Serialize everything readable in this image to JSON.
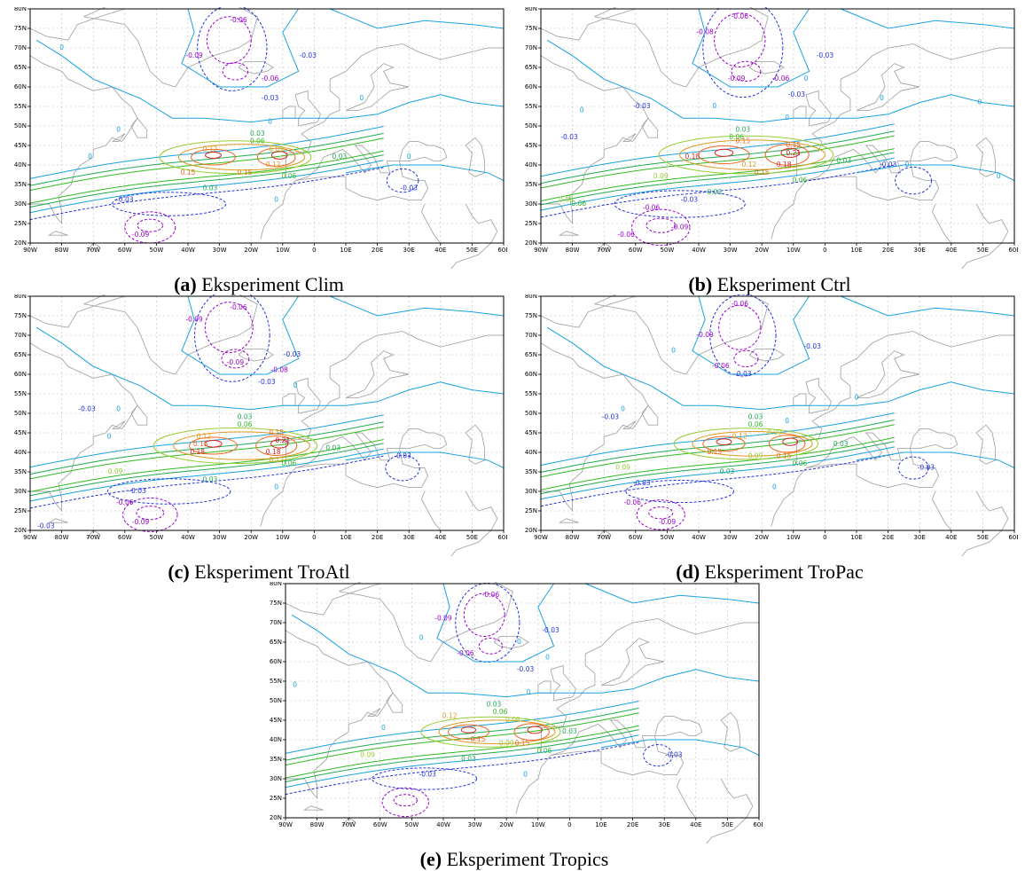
{
  "figure": {
    "panels": [
      {
        "letter": "(a)",
        "caption": "Eksperiment Clim",
        "labels": [
          {
            "t": "-0.06",
            "lon": -24,
            "lat": 77
          },
          {
            "t": "-0.09",
            "lon": -38,
            "lat": 68
          },
          {
            "t": "-0.03",
            "lon": -2,
            "lat": 68
          },
          {
            "t": "-0.06",
            "lon": -14,
            "lat": 62
          },
          {
            "t": "-0.03",
            "lon": -14,
            "lat": 57
          },
          {
            "t": "0",
            "lon": 15,
            "lat": 57
          },
          {
            "t": "0",
            "lon": -14,
            "lat": 51
          },
          {
            "t": "0.03",
            "lon": -18,
            "lat": 48
          },
          {
            "t": "0.06",
            "lon": -18,
            "lat": 46
          },
          {
            "t": "0.12",
            "lon": -33,
            "lat": 44
          },
          {
            "t": "0.09",
            "lon": -12,
            "lat": 44
          },
          {
            "t": "0.03",
            "lon": 8,
            "lat": 42
          },
          {
            "t": "0.15",
            "lon": -40,
            "lat": 38
          },
          {
            "t": "0.15",
            "lon": -22,
            "lat": 38
          },
          {
            "t": "0.12",
            "lon": -13,
            "lat": 40
          },
          {
            "t": "0.06",
            "lon": -8,
            "lat": 37
          },
          {
            "t": "0.03",
            "lon": -33,
            "lat": 34
          },
          {
            "t": "0",
            "lon": -12,
            "lat": 31
          },
          {
            "t": "-0.03",
            "lon": -60,
            "lat": 31
          },
          {
            "t": "-0.03",
            "lon": 30,
            "lat": 34
          },
          {
            "t": "0",
            "lon": 30,
            "lat": 42
          },
          {
            "t": "-0.09",
            "lon": -55,
            "lat": 22
          },
          {
            "t": "0",
            "lon": -71,
            "lat": 42
          },
          {
            "t": "0",
            "lon": -62,
            "lat": 49
          },
          {
            "t": "0",
            "lon": -80,
            "lat": 70
          }
        ]
      },
      {
        "letter": "(b)",
        "caption": "Eksperiment Ctrl",
        "labels": [
          {
            "t": "-0.06",
            "lon": -27,
            "lat": 78
          },
          {
            "t": "-0.08",
            "lon": -38,
            "lat": 74
          },
          {
            "t": "-0.03",
            "lon": 0,
            "lat": 68
          },
          {
            "t": "-0.09",
            "lon": -28,
            "lat": 62
          },
          {
            "t": "-0.06",
            "lon": -14,
            "lat": 62
          },
          {
            "t": "-0.03",
            "lon": -9,
            "lat": 58
          },
          {
            "t": "0",
            "lon": -6,
            "lat": 62
          },
          {
            "t": "0",
            "lon": 18,
            "lat": 57
          },
          {
            "t": "-0.03",
            "lon": -58,
            "lat": 55
          },
          {
            "t": "0",
            "lon": -77,
            "lat": 54
          },
          {
            "t": "-0.03",
            "lon": -81,
            "lat": 47
          },
          {
            "t": "0",
            "lon": -12,
            "lat": 52
          },
          {
            "t": "0.03",
            "lon": -26,
            "lat": 49
          },
          {
            "t": "0.06",
            "lon": -28,
            "lat": 47
          },
          {
            "t": "0.15",
            "lon": -26,
            "lat": 46
          },
          {
            "t": "0.15",
            "lon": -10,
            "lat": 45
          },
          {
            "t": "0.21",
            "lon": -10,
            "lat": 43
          },
          {
            "t": "0.18",
            "lon": -42,
            "lat": 42
          },
          {
            "t": "0.18",
            "lon": -13,
            "lat": 40
          },
          {
            "t": "0.12",
            "lon": -24,
            "lat": 40
          },
          {
            "t": "0.15",
            "lon": -20,
            "lat": 38
          },
          {
            "t": "0.09",
            "lon": -52,
            "lat": 37
          },
          {
            "t": "0.06",
            "lon": -8,
            "lat": 36
          },
          {
            "t": "0.03",
            "lon": 6,
            "lat": 41
          },
          {
            "t": "-0.03",
            "lon": 20,
            "lat": 40
          },
          {
            "t": "0.03",
            "lon": -35,
            "lat": 33
          },
          {
            "t": "-0.03",
            "lon": -43,
            "lat": 31
          },
          {
            "t": "0.06",
            "lon": -78,
            "lat": 30
          },
          {
            "t": "0.09",
            "lon": -82,
            "lat": 31
          },
          {
            "t": "-0.06",
            "lon": -55,
            "lat": 29
          },
          {
            "t": "-0.09",
            "lon": -46,
            "lat": 24
          },
          {
            "t": "-0.06",
            "lon": -63,
            "lat": 22
          },
          {
            "t": "0",
            "lon": 26,
            "lat": 40
          },
          {
            "t": "0",
            "lon": -35,
            "lat": 55
          },
          {
            "t": "0",
            "lon": 55,
            "lat": 37
          },
          {
            "t": "0",
            "lon": 49,
            "lat": 56
          }
        ]
      },
      {
        "letter": "(c)",
        "caption": "Eksperiment TroAtl",
        "labels": [
          {
            "t": "-0.06",
            "lon": -24,
            "lat": 77
          },
          {
            "t": "-0.09",
            "lon": -38,
            "lat": 74
          },
          {
            "t": "-0.03",
            "lon": -7,
            "lat": 65
          },
          {
            "t": "-0.09",
            "lon": -25,
            "lat": 63
          },
          {
            "t": "-0.08",
            "lon": -11,
            "lat": 61
          },
          {
            "t": "-0.03",
            "lon": -15,
            "lat": 58
          },
          {
            "t": "0",
            "lon": -6,
            "lat": 57
          },
          {
            "t": "-0.03",
            "lon": -72,
            "lat": 51
          },
          {
            "t": "0",
            "lon": -65,
            "lat": 44
          },
          {
            "t": "0.03",
            "lon": -22,
            "lat": 49
          },
          {
            "t": "0.06",
            "lon": -22,
            "lat": 47
          },
          {
            "t": "0.15",
            "lon": -12,
            "lat": 45
          },
          {
            "t": "0.12",
            "lon": -35,
            "lat": 44
          },
          {
            "t": "0.15",
            "lon": -36,
            "lat": 42
          },
          {
            "t": "0.21",
            "lon": -10,
            "lat": 43
          },
          {
            "t": "0.18",
            "lon": -37,
            "lat": 40
          },
          {
            "t": "0.18",
            "lon": -13,
            "lat": 40
          },
          {
            "t": "0.12",
            "lon": -12,
            "lat": 38
          },
          {
            "t": "0.09",
            "lon": -63,
            "lat": 35
          },
          {
            "t": "0.06",
            "lon": -8,
            "lat": 37
          },
          {
            "t": "0.03",
            "lon": 6,
            "lat": 41
          },
          {
            "t": "-0.03",
            "lon": 28,
            "lat": 39
          },
          {
            "t": "0.03",
            "lon": -33,
            "lat": 33
          },
          {
            "t": "-0.03",
            "lon": -56,
            "lat": 30
          },
          {
            "t": "-0.06",
            "lon": -60,
            "lat": 27
          },
          {
            "t": "-0.09",
            "lon": -55,
            "lat": 22
          },
          {
            "t": "-0.03",
            "lon": -85,
            "lat": 21
          },
          {
            "t": "0",
            "lon": -12,
            "lat": 31
          },
          {
            "t": "0",
            "lon": -62,
            "lat": 51
          }
        ]
      },
      {
        "letter": "(d)",
        "caption": "Eksperiment TroPac",
        "labels": [
          {
            "t": "-0.06",
            "lon": -27,
            "lat": 78
          },
          {
            "t": "-0.09",
            "lon": -38,
            "lat": 70
          },
          {
            "t": "-0.03",
            "lon": -4,
            "lat": 67
          },
          {
            "t": "-0.06",
            "lon": -33,
            "lat": 62
          },
          {
            "t": "-0.03",
            "lon": -26,
            "lat": 60
          },
          {
            "t": "0",
            "lon": -48,
            "lat": 66
          },
          {
            "t": "-0.03",
            "lon": -68,
            "lat": 49
          },
          {
            "t": "0",
            "lon": -64,
            "lat": 51
          },
          {
            "t": "0.03",
            "lon": -22,
            "lat": 49
          },
          {
            "t": "0.06",
            "lon": -22,
            "lat": 47
          },
          {
            "t": "0.09",
            "lon": -16,
            "lat": 45
          },
          {
            "t": "0.12",
            "lon": -27,
            "lat": 44
          },
          {
            "t": "0.15",
            "lon": -35,
            "lat": 40
          },
          {
            "t": "0.09",
            "lon": -22,
            "lat": 39
          },
          {
            "t": "0.15",
            "lon": -13,
            "lat": 39
          },
          {
            "t": "0.06",
            "lon": -8,
            "lat": 37
          },
          {
            "t": "0.03",
            "lon": 5,
            "lat": 42
          },
          {
            "t": "0.09",
            "lon": -64,
            "lat": 36
          },
          {
            "t": "0.03",
            "lon": -31,
            "lat": 35
          },
          {
            "t": "-0.03",
            "lon": -58,
            "lat": 32
          },
          {
            "t": "-0.03",
            "lon": 32,
            "lat": 36
          },
          {
            "t": "-0.06",
            "lon": -61,
            "lat": 27
          },
          {
            "t": "-0.09",
            "lon": -50,
            "lat": 22
          },
          {
            "t": "0",
            "lon": -16,
            "lat": 31
          },
          {
            "t": "0",
            "lon": 10,
            "lat": 54
          },
          {
            "t": "0",
            "lon": -12,
            "lat": 48
          }
        ]
      },
      {
        "letter": "(e)",
        "caption": "Eksperiment Tropics",
        "labels": [
          {
            "t": "-0.06",
            "lon": -25,
            "lat": 77
          },
          {
            "t": "-0.09",
            "lon": -40,
            "lat": 71
          },
          {
            "t": "-0.03",
            "lon": -6,
            "lat": 68
          },
          {
            "t": "-0.06",
            "lon": -33,
            "lat": 62
          },
          {
            "t": "-0.03",
            "lon": -14,
            "lat": 58
          },
          {
            "t": "0",
            "lon": -16,
            "lat": 65
          },
          {
            "t": "0",
            "lon": -47,
            "lat": 66
          },
          {
            "t": "0",
            "lon": -13,
            "lat": 52
          },
          {
            "t": "0.03",
            "lon": -24,
            "lat": 49
          },
          {
            "t": "0.06",
            "lon": -22,
            "lat": 47
          },
          {
            "t": "0.09",
            "lon": -18,
            "lat": 45
          },
          {
            "t": "0.12",
            "lon": -38,
            "lat": 46
          },
          {
            "t": "0.15",
            "lon": -29,
            "lat": 40
          },
          {
            "t": "0.09",
            "lon": -20,
            "lat": 39
          },
          {
            "t": "0.15",
            "lon": -15,
            "lat": 39
          },
          {
            "t": "0.06",
            "lon": -8,
            "lat": 37
          },
          {
            "t": "0.03",
            "lon": 0,
            "lat": 42
          },
          {
            "t": "0.09",
            "lon": -64,
            "lat": 36
          },
          {
            "t": "0.03",
            "lon": -32,
            "lat": 35
          },
          {
            "t": "-0.03",
            "lon": -45,
            "lat": 31
          },
          {
            "t": "-0.03",
            "lon": 33,
            "lat": 36
          },
          {
            "t": "0",
            "lon": -14,
            "lat": 31
          },
          {
            "t": "0",
            "lon": -59,
            "lat": 43
          },
          {
            "t": "0",
            "lon": -87,
            "lat": 54
          },
          {
            "t": "0",
            "lon": -7,
            "lat": 61
          }
        ]
      }
    ],
    "axes": {
      "lat_ticks": [
        "20N",
        "25N",
        "30N",
        "35N",
        "40N",
        "45N",
        "50N",
        "55N",
        "60N",
        "65N",
        "70N",
        "75N",
        "80N"
      ],
      "lon_ticks": [
        "90W",
        "80W",
        "70W",
        "60W",
        "50W",
        "40W",
        "30W",
        "20W",
        "10W",
        "0",
        "10E",
        "20E",
        "30E",
        "40E",
        "50E",
        "60E"
      ],
      "lat_range": [
        20,
        80
      ],
      "lon_range": [
        -90,
        60
      ]
    },
    "colors": {
      "-0.09": "#9900cc",
      "-0.08": "#9900cc",
      "-0.06": "#9900cc",
      "-0.03": "#2233dd",
      "0": "#1aa3e0",
      "0.03": "#22aa55",
      "0.06": "#33bb22",
      "0.09": "#99cc33",
      "0.12": "#dd9922",
      "0.15": "#ee6622",
      "0.18": "#dd2222",
      "0.21": "#cc1133"
    }
  }
}
